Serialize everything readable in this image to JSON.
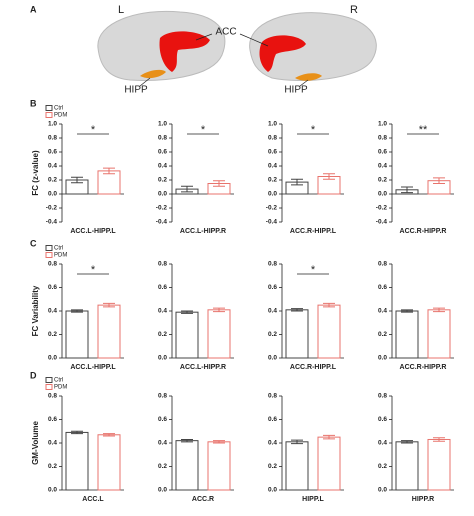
{
  "brain": {
    "panel": "A",
    "labels": [
      "L",
      "R",
      "ACC",
      "HIPP",
      "HIPP"
    ]
  },
  "chart_data": [
    {
      "type": "bar",
      "panel": "B",
      "ylabel": "FC (z-value)",
      "xlabel": "ACC.L-HIPP.L",
      "legend": [
        "Ctrl",
        "PDM"
      ],
      "values": [
        0.2,
        0.33
      ],
      "errors": [
        0.04,
        0.04
      ],
      "colors": [
        "#444444",
        "#e8736c"
      ],
      "ylim": [
        -0.4,
        1.0
      ],
      "yticks": [
        -0.4,
        -0.2,
        {
          "value": 0,
          "label": "0.0"
        },
        0.2,
        0.4,
        0.6,
        0.8,
        {
          "value": 1,
          "label": "1.0"
        }
      ],
      "significance": "*"
    },
    {
      "type": "bar",
      "xlabel": "ACC.L-HIPP.R",
      "values": [
        0.07,
        0.15
      ],
      "errors": [
        0.04,
        0.04
      ],
      "colors": [
        "#444444",
        "#e8736c"
      ],
      "ylim": [
        -0.4,
        1.0
      ],
      "yticks": [
        -0.4,
        -0.2,
        {
          "value": 0,
          "label": "0.0"
        },
        0.2,
        0.4,
        0.6,
        0.8,
        {
          "value": 1,
          "label": "1.0"
        }
      ],
      "significance": "*"
    },
    {
      "type": "bar",
      "xlabel": "ACC.R-HIPP.L",
      "values": [
        0.17,
        0.25
      ],
      "errors": [
        0.04,
        0.04
      ],
      "colors": [
        "#444444",
        "#e8736c"
      ],
      "ylim": [
        -0.4,
        1.0
      ],
      "yticks": [
        -0.4,
        -0.2,
        {
          "value": 0,
          "label": "0.0"
        },
        0.2,
        0.4,
        0.6,
        0.8,
        {
          "value": 1,
          "label": "1.0"
        }
      ],
      "significance": "*"
    },
    {
      "type": "bar",
      "xlabel": "ACC.R-HIPP.R",
      "values": [
        0.06,
        0.19
      ],
      "errors": [
        0.04,
        0.04
      ],
      "colors": [
        "#444444",
        "#e8736c"
      ],
      "ylim": [
        -0.4,
        1.0
      ],
      "yticks": [
        -0.4,
        -0.2,
        {
          "value": 0,
          "label": "0.0"
        },
        0.2,
        0.4,
        0.6,
        0.8,
        {
          "value": 1,
          "label": "1.0"
        }
      ],
      "significance": "**"
    },
    {
      "type": "bar",
      "panel": "C",
      "ylabel": "FC Variability",
      "xlabel": "ACC.L-HIPP.L",
      "legend": [
        "Ctrl",
        "PDM"
      ],
      "values": [
        0.4,
        0.45
      ],
      "errors": [
        0.01,
        0.015
      ],
      "colors": [
        "#444444",
        "#e8736c"
      ],
      "ylim": [
        0,
        0.8
      ],
      "yticks": [
        {
          "value": 0,
          "label": "0.0"
        },
        0.2,
        0.4,
        0.6,
        0.8
      ],
      "significance": "*"
    },
    {
      "type": "bar",
      "xlabel": "ACC.L-HIPP.R",
      "values": [
        0.39,
        0.41
      ],
      "errors": [
        0.01,
        0.015
      ],
      "colors": [
        "#444444",
        "#e8736c"
      ],
      "ylim": [
        0,
        0.8
      ],
      "yticks": [
        {
          "value": 0,
          "label": "0.0"
        },
        0.2,
        0.4,
        0.6,
        0.8
      ]
    },
    {
      "type": "bar",
      "xlabel": "ACC.R-HIPP.L",
      "values": [
        0.41,
        0.45
      ],
      "errors": [
        0.01,
        0.015
      ],
      "colors": [
        "#444444",
        "#e8736c"
      ],
      "ylim": [
        0,
        0.8
      ],
      "yticks": [
        {
          "value": 0,
          "label": "0.0"
        },
        0.2,
        0.4,
        0.6,
        0.8
      ],
      "significance": "*"
    },
    {
      "type": "bar",
      "xlabel": "ACC.R-HIPP.R",
      "values": [
        0.4,
        0.41
      ],
      "errors": [
        0.01,
        0.015
      ],
      "colors": [
        "#444444",
        "#e8736c"
      ],
      "ylim": [
        0,
        0.8
      ],
      "yticks": [
        {
          "value": 0,
          "label": "0.0"
        },
        0.2,
        0.4,
        0.6,
        0.8
      ]
    },
    {
      "type": "bar",
      "panel": "D",
      "ylabel": "GM-Volume",
      "xlabel": "ACC.L",
      "legend": [
        "Ctrl",
        "PDM"
      ],
      "values": [
        0.49,
        0.47
      ],
      "errors": [
        0.01,
        0.01
      ],
      "colors": [
        "#444444",
        "#e8736c"
      ],
      "ylim": [
        0,
        0.8
      ],
      "yticks": [
        {
          "value": 0,
          "label": "0.0"
        },
        0.2,
        0.4,
        0.6,
        0.8
      ]
    },
    {
      "type": "bar",
      "xlabel": "ACC.R",
      "values": [
        0.42,
        0.41
      ],
      "errors": [
        0.01,
        0.01
      ],
      "colors": [
        "#444444",
        "#e8736c"
      ],
      "ylim": [
        0,
        0.8
      ],
      "yticks": [
        {
          "value": 0,
          "label": "0.0"
        },
        0.2,
        0.4,
        0.6,
        0.8
      ]
    },
    {
      "type": "bar",
      "xlabel": "HIPP.L",
      "values": [
        0.41,
        0.45
      ],
      "errors": [
        0.015,
        0.015
      ],
      "colors": [
        "#444444",
        "#e8736c"
      ],
      "ylim": [
        0,
        0.8
      ],
      "yticks": [
        {
          "value": 0,
          "label": "0.0"
        },
        0.2,
        0.4,
        0.6,
        0.8
      ]
    },
    {
      "type": "bar",
      "xlabel": "HIPP.R",
      "values": [
        0.41,
        0.43
      ],
      "errors": [
        0.01,
        0.015
      ],
      "colors": [
        "#444444",
        "#e8736c"
      ],
      "ylim": [
        0,
        0.8
      ],
      "yticks": [
        {
          "value": 0,
          "label": "0.0"
        },
        0.2,
        0.4,
        0.6,
        0.8
      ]
    }
  ]
}
